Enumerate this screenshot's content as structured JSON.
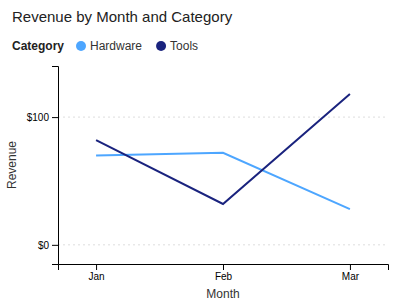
{
  "chart_data": {
    "type": "line",
    "title": "Revenue by Month and Category",
    "xlabel": "Month",
    "ylabel": "Revenue",
    "categories": [
      "Jan",
      "Feb",
      "Mar"
    ],
    "series": [
      {
        "name": "Hardware",
        "color": "#4DA6FF",
        "values": [
          70,
          72,
          28
        ]
      },
      {
        "name": "Tools",
        "color": "#1A237E",
        "values": [
          82,
          32,
          118
        ]
      }
    ],
    "ylim": [
      -15,
      140
    ],
    "yticks": [
      {
        "value": 0,
        "label": "$0"
      },
      {
        "value": 100,
        "label": "$100"
      }
    ],
    "grid": true,
    "legend": "top-left",
    "legend_title": "Category"
  }
}
